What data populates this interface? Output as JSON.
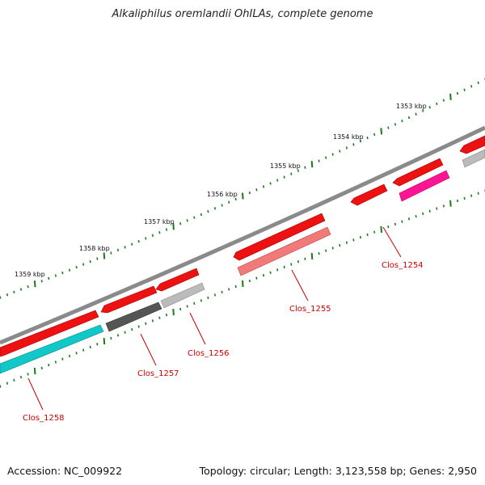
{
  "title": "Alkaliphilus oremlandii OhILAs, complete genome",
  "footer": {
    "accession": "Accession: NC_009922",
    "summary": "Topology: circular; Length: 3,123,558 bp; Genes: 2,950"
  },
  "colors": {
    "backbone": "#8a8a8a",
    "tick": "#1a7a1a",
    "label": "#cc0000",
    "leader": "#cc0000",
    "cds_forward": "#ee1111",
    "cds_dark": "#555555",
    "cds_light": "#bbbbbb",
    "cds_pink": "#f07a7a",
    "cds_magenta": "#ff1493",
    "cds_cyan": "#11c8c8"
  },
  "scale_labels": [
    "1353 kbp",
    "1354 kbp",
    "1355 kbp",
    "1356 kbp",
    "1357 kbp",
    "1358 kbp",
    "1359 kbp"
  ],
  "genes": [
    {
      "label": "Clos_1254"
    },
    {
      "label": "Clos_1255"
    },
    {
      "label": "Clos_1256"
    },
    {
      "label": "Clos_1257"
    },
    {
      "label": "Clos_1258"
    }
  ]
}
